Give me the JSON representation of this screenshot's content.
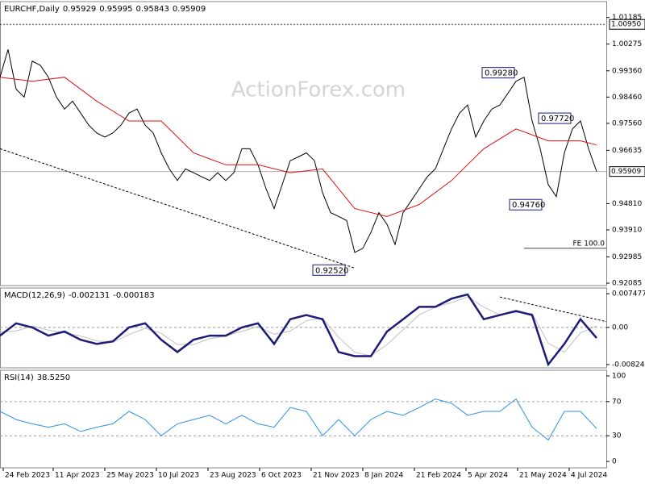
{
  "chart_data": [
    {
      "type": "line",
      "title": "EURCHF,Daily",
      "ohlc": [
        0.95929,
        0.95995,
        0.95843,
        0.95909
      ],
      "watermark": "ActionForex.com",
      "xlim": [
        0,
        376
      ],
      "ylim": [
        0.92003,
        1.0173
      ],
      "yticks": [
        {
          "value": 1.01185,
          "label": "1.01185"
        },
        {
          "value": 1.00275,
          "label": "1.00275"
        },
        {
          "value": 0.9936,
          "label": "0.99360"
        },
        {
          "value": 0.9846,
          "label": "0.98460"
        },
        {
          "value": 0.9756,
          "label": "0.97560"
        },
        {
          "value": 0.96635,
          "label": "0.96635"
        },
        {
          "value": 0.9481,
          "label": "0.94810"
        },
        {
          "value": 0.9391,
          "label": "0.93910"
        },
        {
          "value": 0.92985,
          "label": "0.92985"
        },
        {
          "value": 0.92085,
          "label": "0.92085"
        }
      ],
      "level": {
        "value": 1.0095,
        "label": "1.00950"
      },
      "last_price": 0.95909,
      "series": [
        {
          "color": "#000000",
          "width": 1,
          "x": [
            0,
            5,
            10,
            15,
            20,
            25,
            30,
            35,
            40,
            45,
            50,
            55,
            60,
            65,
            70,
            75,
            80,
            85,
            90,
            95,
            100,
            105,
            110,
            115,
            120,
            125,
            130,
            135,
            140,
            145,
            150,
            155,
            160,
            165,
            170,
            175,
            180,
            185,
            190,
            195,
            200,
            205,
            210,
            215,
            220,
            225,
            230,
            235,
            240,
            245,
            250,
            255,
            260,
            265,
            270,
            275,
            280,
            285,
            290,
            295,
            300,
            305,
            310,
            315,
            320,
            325,
            330,
            335,
            340,
            345,
            350,
            355,
            360,
            365,
            370
          ],
          "values": [
            0.9914,
            1.0009,
            0.9873,
            0.9846,
            0.9969,
            0.9955,
            0.9914,
            0.9846,
            0.9805,
            0.9832,
            0.9791,
            0.975,
            0.9723,
            0.9709,
            0.9723,
            0.975,
            0.9791,
            0.9805,
            0.975,
            0.9723,
            0.9655,
            0.96,
            0.956,
            0.96,
            0.9587,
            0.9573,
            0.956,
            0.9587,
            0.956,
            0.9587,
            0.9669,
            0.9669,
            0.9614,
            0.9532,
            0.9464,
            0.9546,
            0.9628,
            0.9641,
            0.9655,
            0.9628,
            0.9519,
            0.945,
            0.9437,
            0.9423,
            0.9314,
            0.9328,
            0.9382,
            0.945,
            0.941,
            0.9341,
            0.945,
            0.9491,
            0.9532,
            0.9573,
            0.96,
            0.9669,
            0.9737,
            0.9791,
            0.9819,
            0.9709,
            0.9764,
            0.9805,
            0.9819,
            0.9859,
            0.99,
            0.9914,
            0.9764,
            0.9669,
            0.9546,
            0.9505,
            0.9655,
            0.9737,
            0.9764,
            0.9669,
            0.95909
          ]
        },
        {
          "color": "#e01010",
          "width": 1,
          "x": [
            0,
            20,
            40,
            60,
            80,
            100,
            120,
            140,
            160,
            180,
            200,
            220,
            240,
            260,
            280,
            300,
            320,
            340,
            360,
            370
          ],
          "values": [
            0.9914,
            0.99,
            0.9914,
            0.9832,
            0.9764,
            0.9764,
            0.9655,
            0.9614,
            0.9614,
            0.9587,
            0.96,
            0.9464,
            0.9437,
            0.9478,
            0.956,
            0.9669,
            0.9737,
            0.9696,
            0.9696,
            0.9682
          ]
        }
      ],
      "trendline": {
        "x": [
          0,
          220
        ],
        "values": [
          0.9669,
          0.926
        ]
      },
      "annotations": [
        {
          "x": 299,
          "value": 0.9928,
          "label": "0.99280"
        },
        {
          "x": 334,
          "value": 0.9772,
          "label": "0.97720"
        },
        {
          "x": 316,
          "value": 0.9476,
          "label": "0.94760"
        },
        {
          "x": 194,
          "value": 0.9252,
          "label": "0.92520"
        }
      ],
      "fe": {
        "label": "FE 100.0",
        "x": [
          325,
          376
        ],
        "value": 0.9328
      }
    },
    {
      "type": "line",
      "title": "MACD(12,26,9)",
      "readout": [
        -0.002131,
        -0.000183
      ],
      "xlim": [
        0,
        376
      ],
      "ylim": [
        -0.00897,
        0.00875
      ],
      "yticks": [
        0.007477,
        {
          "value": 0,
          "label": "0.00"
        },
        -0.00824
      ],
      "levels": [
        0
      ],
      "series": [
        {
          "color": "#c0c0c0",
          "width": 1,
          "x": [
            0,
            10,
            20,
            30,
            40,
            50,
            60,
            70,
            80,
            90,
            100,
            110,
            120,
            130,
            140,
            150,
            160,
            170,
            180,
            190,
            200,
            210,
            220,
            230,
            240,
            250,
            260,
            270,
            280,
            290,
            300,
            310,
            320,
            330,
            340,
            350,
            360,
            370
          ],
          "values": [
            -0.001,
            -0.0008,
            0.0003,
            -0.0006,
            -0.0012,
            -0.0019,
            -0.003,
            -0.0033,
            -0.0016,
            -0.0002,
            -0.0013,
            -0.0038,
            -0.0038,
            -0.0025,
            -0.0019,
            -0.0009,
            0.0002,
            -0.0015,
            -0.0008,
            0.0015,
            0.0021,
            -0.0022,
            -0.0055,
            -0.0063,
            -0.0038,
            -0.0005,
            0.0028,
            0.0045,
            0.0055,
            0.0068,
            0.0045,
            0.0028,
            0.0033,
            0.0031,
            -0.0035,
            -0.0055,
            -0.0012,
            0.0003
          ]
        },
        {
          "color": "#1c1c78",
          "width": 2.5,
          "x": [
            0,
            10,
            20,
            30,
            40,
            50,
            60,
            70,
            80,
            90,
            100,
            110,
            120,
            130,
            140,
            150,
            160,
            170,
            180,
            190,
            200,
            210,
            220,
            230,
            240,
            250,
            260,
            270,
            280,
            290,
            300,
            310,
            320,
            330,
            340,
            350,
            360,
            370
          ],
          "values": [
            -0.00182,
            0.00091,
            0,
            -0.00182,
            -0.00091,
            -0.00274,
            -0.00365,
            -0.0031,
            0,
            0.00091,
            -0.00274,
            -0.00547,
            -0.00274,
            -0.00182,
            -0.00182,
            0,
            0.00091,
            -0.00365,
            0.00182,
            0.00274,
            0.00182,
            -0.00547,
            -0.00638,
            -0.00638,
            -0.00091,
            0.00182,
            0.00456,
            0.00456,
            0.00638,
            0.0073,
            0.00182,
            0.00274,
            0.00365,
            0.00274,
            -0.00821,
            -0.00365,
            0.00182,
            -0.00237
          ]
        }
      ],
      "trendline": {
        "x": [
          310,
          376
        ],
        "values": [
          0.00675,
          0.00128
        ]
      }
    },
    {
      "type": "line",
      "title": "RSI(14)",
      "readout": [
        "38.5250"
      ],
      "xlim": [
        0,
        376
      ],
      "ylim": [
        -7.5,
        106.6
      ],
      "yticks": [
        100,
        70,
        30,
        0
      ],
      "levels": [
        70,
        30
      ],
      "series": [
        {
          "color": "#2e8fe0",
          "width": 1,
          "x": [
            0,
            10,
            20,
            30,
            40,
            50,
            60,
            70,
            80,
            90,
            100,
            110,
            120,
            130,
            140,
            150,
            160,
            170,
            180,
            190,
            200,
            210,
            220,
            230,
            240,
            250,
            260,
            270,
            280,
            290,
            300,
            310,
            320,
            330,
            340,
            350,
            360,
            370
          ],
          "values": [
            58.5,
            49,
            44,
            40,
            44,
            35,
            40,
            44,
            58.5,
            49,
            30,
            44,
            49,
            54,
            44,
            54,
            44,
            40,
            63,
            58.5,
            30,
            49,
            30,
            49,
            58.5,
            54,
            63,
            73,
            68,
            54,
            58.5,
            58.5,
            73,
            40,
            25,
            58.5,
            58.5,
            38.5
          ]
        }
      ],
      "xticks": [
        {
          "value": 2,
          "label": "24 Feb 2023"
        },
        {
          "value": 33,
          "label": "11 Apr 2023"
        },
        {
          "value": 65,
          "label": "25 May 2023"
        },
        {
          "value": 97,
          "label": "10 Jul 2023"
        },
        {
          "value": 129,
          "label": "23 Aug 2023"
        },
        {
          "value": 161,
          "label": "6 Oct 2023"
        },
        {
          "value": 193,
          "label": "21 Nov 2023"
        },
        {
          "value": 225,
          "label": "8 Jan 2024"
        },
        {
          "value": 257,
          "label": "21 Feb 2024"
        },
        {
          "value": 289,
          "label": "5 Apr 2024"
        },
        {
          "value": 321,
          "label": "21 May 2024"
        },
        {
          "value": 353,
          "label": "4 Jul 2024"
        }
      ]
    }
  ]
}
